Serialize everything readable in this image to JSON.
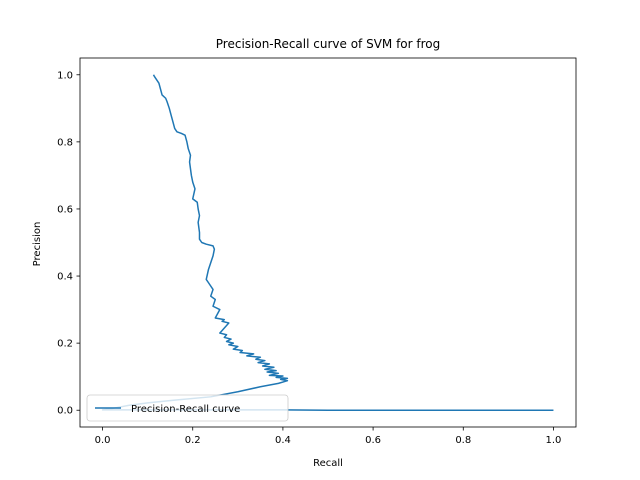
{
  "chart_data": {
    "type": "line",
    "title": "Precision-Recall curve of SVM for frog",
    "xlabel": "Recall",
    "ylabel": "Precision",
    "xlim": [
      -0.05,
      1.05
    ],
    "ylim": [
      -0.05,
      1.05
    ],
    "xticks": [
      0.0,
      0.2,
      0.4,
      0.6,
      0.8,
      1.0
    ],
    "yticks": [
      0.0,
      0.2,
      0.4,
      0.6,
      0.8,
      1.0
    ],
    "xtick_labels": [
      "0.0",
      "0.2",
      "0.4",
      "0.6",
      "0.8",
      "1.0"
    ],
    "ytick_labels": [
      "0.0",
      "0.2",
      "0.4",
      "0.6",
      "0.8",
      "1.0"
    ],
    "grid": false,
    "legend": {
      "position": "lower left",
      "entries": [
        "Precision-Recall curve"
      ]
    },
    "series": [
      {
        "name": "Precision-Recall curve",
        "color": "#1f77b4",
        "points": [
          [
            1.0,
            0.0
          ],
          [
            0.5,
            0.0
          ],
          [
            0.4,
            0.001
          ],
          [
            0.0,
            0.001
          ],
          [
            0.02,
            0.005
          ],
          [
            0.06,
            0.015
          ],
          [
            0.1,
            0.022
          ],
          [
            0.16,
            0.03
          ],
          [
            0.24,
            0.04
          ],
          [
            0.3,
            0.055
          ],
          [
            0.35,
            0.07
          ],
          [
            0.39,
            0.08
          ],
          [
            0.41,
            0.088
          ],
          [
            0.395,
            0.092
          ],
          [
            0.41,
            0.095
          ],
          [
            0.385,
            0.098
          ],
          [
            0.4,
            0.102
          ],
          [
            0.37,
            0.104
          ],
          [
            0.39,
            0.11
          ],
          [
            0.365,
            0.114
          ],
          [
            0.385,
            0.118
          ],
          [
            0.36,
            0.122
          ],
          [
            0.38,
            0.128
          ],
          [
            0.355,
            0.132
          ],
          [
            0.37,
            0.138
          ],
          [
            0.345,
            0.142
          ],
          [
            0.36,
            0.148
          ],
          [
            0.34,
            0.152
          ],
          [
            0.35,
            0.158
          ],
          [
            0.32,
            0.162
          ],
          [
            0.335,
            0.168
          ],
          [
            0.305,
            0.172
          ],
          [
            0.31,
            0.178
          ],
          [
            0.29,
            0.182
          ],
          [
            0.3,
            0.19
          ],
          [
            0.28,
            0.195
          ],
          [
            0.29,
            0.2
          ],
          [
            0.275,
            0.205
          ],
          [
            0.285,
            0.212
          ],
          [
            0.27,
            0.217
          ],
          [
            0.275,
            0.225
          ],
          [
            0.26,
            0.23
          ],
          [
            0.28,
            0.26
          ],
          [
            0.265,
            0.265
          ],
          [
            0.27,
            0.27
          ],
          [
            0.25,
            0.275
          ],
          [
            0.26,
            0.3
          ],
          [
            0.245,
            0.31
          ],
          [
            0.25,
            0.33
          ],
          [
            0.24,
            0.34
          ],
          [
            0.245,
            0.36
          ],
          [
            0.235,
            0.38
          ],
          [
            0.23,
            0.39
          ],
          [
            0.235,
            0.42
          ],
          [
            0.24,
            0.44
          ],
          [
            0.245,
            0.46
          ],
          [
            0.248,
            0.48
          ],
          [
            0.245,
            0.49
          ],
          [
            0.23,
            0.495
          ],
          [
            0.22,
            0.5
          ],
          [
            0.215,
            0.51
          ],
          [
            0.215,
            0.53
          ],
          [
            0.212,
            0.56
          ],
          [
            0.215,
            0.58
          ],
          [
            0.212,
            0.6
          ],
          [
            0.21,
            0.62
          ],
          [
            0.2,
            0.63
          ],
          [
            0.205,
            0.66
          ],
          [
            0.2,
            0.68
          ],
          [
            0.197,
            0.7
          ],
          [
            0.193,
            0.74
          ],
          [
            0.195,
            0.76
          ],
          [
            0.19,
            0.78
          ],
          [
            0.187,
            0.8
          ],
          [
            0.183,
            0.82
          ],
          [
            0.175,
            0.825
          ],
          [
            0.165,
            0.83
          ],
          [
            0.16,
            0.84
          ],
          [
            0.156,
            0.86
          ],
          [
            0.152,
            0.88
          ],
          [
            0.148,
            0.9
          ],
          [
            0.143,
            0.92
          ],
          [
            0.14,
            0.93
          ],
          [
            0.132,
            0.94
          ],
          [
            0.128,
            0.96
          ],
          [
            0.125,
            0.975
          ],
          [
            0.12,
            0.985
          ],
          [
            0.115,
            0.995
          ],
          [
            0.113,
            1.0
          ]
        ]
      }
    ]
  }
}
